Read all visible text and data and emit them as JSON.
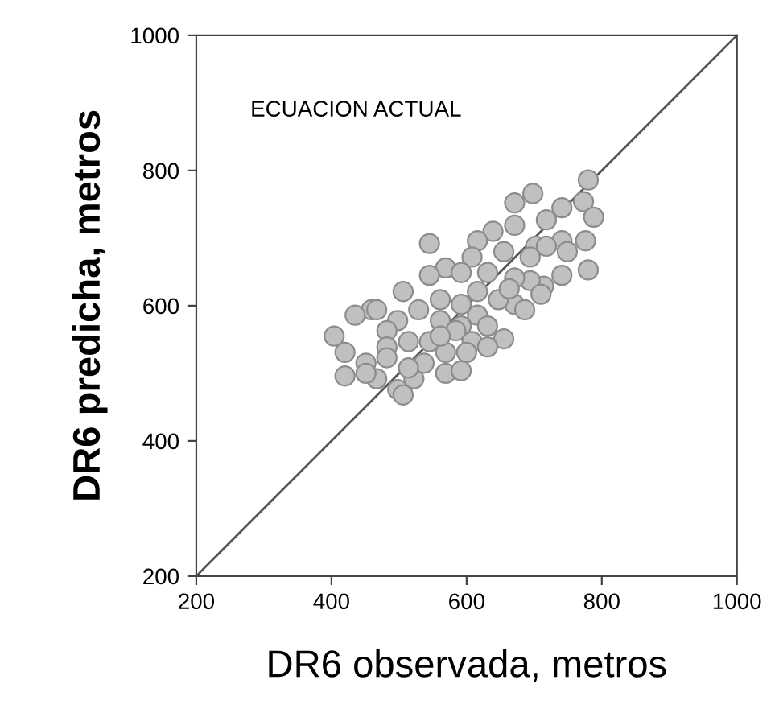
{
  "chart_data": {
    "type": "scatter",
    "xlabel": "DR6 observada, metros",
    "ylabel": "DR6 predicha, metros",
    "annotations": [
      "ECUACION ACTUAL"
    ],
    "xlim": [
      200,
      1000
    ],
    "ylim": [
      200,
      1000
    ],
    "xticks": [
      200,
      400,
      600,
      800,
      1000
    ],
    "yticks": [
      200,
      400,
      600,
      800,
      1000
    ],
    "grid": false,
    "series": [
      {
        "marker": "circle",
        "color": "#c0c0c0",
        "x": [
          780,
          698,
          671,
          773,
          788,
          741,
          718,
          639,
          616,
          545,
          776,
          741,
          702,
          671,
          655,
          608,
          569,
          592,
          780,
          741,
          714,
          694,
          671,
          631,
          545,
          506,
          459,
          435,
          529,
          561,
          671,
          647,
          616,
          592,
          561,
          498,
          482,
          404,
          420,
          451,
          482,
          514,
          467,
          498,
          451,
          522,
          537,
          569,
          592,
          569,
          608,
          655,
          631,
          584,
          545,
          420,
          482,
          514,
          694,
          718,
          749,
          686,
          710,
          663,
          616,
          592,
          631,
          506,
          467,
          561,
          600
        ],
        "values": [
          786,
          766,
          752,
          754,
          731,
          745,
          727,
          710,
          696,
          692,
          696,
          696,
          688,
          719,
          680,
          672,
          656,
          649,
          653,
          645,
          629,
          637,
          641,
          649,
          645,
          621,
          594,
          586,
          594,
          609,
          602,
          609,
          586,
          570,
          578,
          578,
          563,
          555,
          531,
          515,
          539,
          547,
          492,
          476,
          500,
          492,
          515,
          500,
          504,
          531,
          547,
          551,
          570,
          563,
          547,
          496,
          523,
          508,
          672,
          688,
          680,
          594,
          617,
          625,
          621,
          602,
          539,
          468,
          594,
          555,
          531
        ]
      },
      {
        "type": "line",
        "color": "#555555",
        "x": [
          200,
          1000
        ],
        "values": [
          200,
          1000
        ]
      }
    ]
  }
}
